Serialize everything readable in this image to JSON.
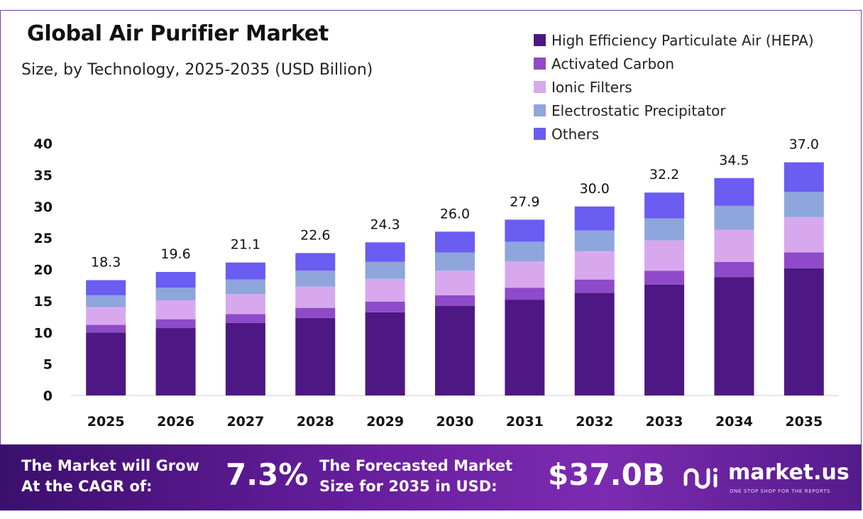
{
  "title": "Global Air Purifier Market",
  "subtitle": "Size, by Technology, 2025-2035 (USD Billion)",
  "colors": {
    "hepa": "#4e1884",
    "activated_carbon": "#8e4ac8",
    "ionic": "#d8a8ee",
    "electrostatic": "#8ea6dc",
    "others": "#6b5cf2",
    "frame": "#7b3fa6",
    "footer_start": "#3b0f6e",
    "footer_end": "#7c2bb0"
  },
  "chart_data": {
    "type": "bar",
    "stacked": true,
    "title": "Global Air Purifier Market",
    "subtitle": "Size, by Technology, 2025-2035 (USD Billion)",
    "categories": [
      "2025",
      "2026",
      "2027",
      "2028",
      "2029",
      "2030",
      "2031",
      "2032",
      "2033",
      "2034",
      "2035"
    ],
    "series": [
      {
        "name": "High Efficiency Particulate Air (HEPA)",
        "values": [
          10.0,
          10.7,
          11.5,
          12.3,
          13.2,
          14.2,
          15.2,
          16.3,
          17.6,
          18.8,
          20.2
        ]
      },
      {
        "name": "Activated Carbon",
        "values": [
          1.2,
          1.4,
          1.4,
          1.6,
          1.7,
          1.7,
          1.9,
          2.1,
          2.2,
          2.4,
          2.5
        ]
      },
      {
        "name": "Ionic Filters",
        "values": [
          2.8,
          3.0,
          3.2,
          3.4,
          3.6,
          3.9,
          4.2,
          4.5,
          4.8,
          5.1,
          5.6
        ]
      },
      {
        "name": "Electrostatic Precipitator",
        "values": [
          1.9,
          2.0,
          2.3,
          2.5,
          2.7,
          2.9,
          3.1,
          3.3,
          3.5,
          3.8,
          4.0
        ]
      },
      {
        "name": "Others",
        "values": [
          2.4,
          2.5,
          2.7,
          2.8,
          3.1,
          3.3,
          3.5,
          3.8,
          4.1,
          4.4,
          4.7
        ]
      }
    ],
    "totals": [
      "18.3",
      "19.6",
      "21.1",
      "22.6",
      "24.3",
      "26.0",
      "27.9",
      "30.0",
      "32.2",
      "34.5",
      "37.0"
    ],
    "yticks": [
      "0",
      "5",
      "10",
      "15",
      "20",
      "25",
      "30",
      "35",
      "40"
    ],
    "ylim": [
      0,
      40
    ],
    "xlabel": "",
    "ylabel": "",
    "grid": false,
    "legend_position": "top-right"
  },
  "footer": {
    "cagr_label": "The Market will Grow At the CAGR of:",
    "cagr_value": "7.3%",
    "forecast_label": "The Forecasted Market Size for 2035 in USD:",
    "forecast_value": "$37.0B",
    "brand_name": "market.us",
    "brand_tagline": "ONE STOP SHOP FOR THE REPORTS",
    "brand_icon": "market-us-logo-icon"
  }
}
